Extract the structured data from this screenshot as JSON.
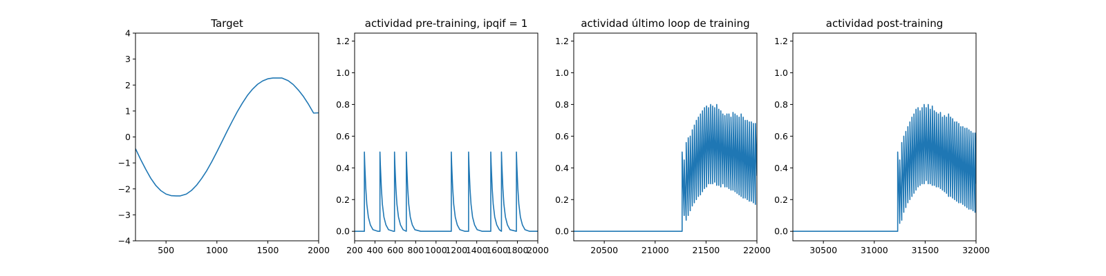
{
  "chart_data": [
    {
      "type": "line",
      "title": "Target",
      "xlim": [
        200,
        2000
      ],
      "ylim": [
        -4,
        4
      ],
      "xticks": [
        500,
        1000,
        1500,
        2000
      ],
      "yticks": [
        -4,
        -3,
        -2,
        -1,
        0,
        1,
        2,
        3,
        4
      ],
      "xtick_labels": [
        "500",
        "1000",
        "1500",
        "2000"
      ],
      "ytick_labels": [
        "−4",
        "−3",
        "−2",
        "−1",
        "0",
        "1",
        "2",
        "3",
        "4"
      ],
      "series": [
        {
          "color": "#1f77b4",
          "x": [
            200,
            250,
            300,
            350,
            400,
            450,
            500,
            550,
            600,
            640,
            700,
            750,
            800,
            850,
            900,
            950,
            1000,
            1050,
            1100,
            1150,
            1200,
            1250,
            1300,
            1350,
            1400,
            1450,
            1500,
            1550,
            1600,
            1640,
            1700,
            1750,
            1800,
            1850,
            1900,
            1950,
            2000
          ],
          "y": [
            -0.45,
            -0.86,
            -1.24,
            -1.59,
            -1.87,
            -2.07,
            -2.2,
            -2.26,
            -2.27,
            -2.27,
            -2.2,
            -2.06,
            -1.86,
            -1.6,
            -1.3,
            -0.95,
            -0.57,
            -0.18,
            0.22,
            0.6,
            0.97,
            1.3,
            1.6,
            1.84,
            2.03,
            2.16,
            2.24,
            2.27,
            2.27,
            2.27,
            2.17,
            2.02,
            1.81,
            1.56,
            1.26,
            0.92,
            0.93
          ]
        }
      ]
    },
    {
      "type": "line",
      "title": "actividad pre-training, ipqif = 1",
      "xlim": [
        200,
        2000
      ],
      "ylim": [
        -0.06,
        1.25
      ],
      "xticks": [
        200,
        400,
        600,
        800,
        1000,
        1200,
        1400,
        1600,
        1800,
        2000
      ],
      "yticks": [
        0.0,
        0.2,
        0.4,
        0.6,
        0.8,
        1.0,
        1.2
      ],
      "xtick_labels": [
        "200",
        "400",
        "600",
        "800",
        "1000",
        "1200",
        "1400",
        "1600",
        "1800",
        "2000"
      ],
      "ytick_labels": [
        "0.0",
        "0.2",
        "0.4",
        "0.6",
        "0.8",
        "1.0",
        "1.2"
      ],
      "series": [
        {
          "color": "#1f77b4",
          "x": [
            200,
            296,
            296,
            300,
            310,
            320,
            335,
            355,
            380,
            430,
            449,
            449,
            453,
            463,
            473,
            488,
            508,
            533,
            583,
            592,
            592,
            596,
            606,
            616,
            631,
            651,
            676,
            708,
            708,
            712,
            722,
            732,
            747,
            767,
            792,
            850,
            1000,
            1150,
            1150,
            1154,
            1164,
            1174,
            1189,
            1209,
            1234,
            1284,
            1320,
            1320,
            1324,
            1334,
            1344,
            1359,
            1379,
            1404,
            1454,
            1538,
            1538,
            1542,
            1552,
            1562,
            1577,
            1597,
            1622,
            1643,
            1643,
            1647,
            1657,
            1667,
            1682,
            1702,
            1727,
            1790,
            1790,
            1794,
            1804,
            1814,
            1829,
            1849,
            1874,
            1920,
            2000
          ],
          "y": [
            0,
            0,
            0.5,
            0.42,
            0.27,
            0.17,
            0.09,
            0.04,
            0.01,
            0,
            0,
            0.5,
            0.42,
            0.27,
            0.17,
            0.09,
            0.04,
            0.01,
            0,
            0,
            0.5,
            0.42,
            0.27,
            0.17,
            0.09,
            0.04,
            0.01,
            0,
            0.5,
            0.42,
            0.27,
            0.17,
            0.09,
            0.04,
            0.01,
            0,
            0,
            0,
            0.5,
            0.42,
            0.27,
            0.17,
            0.09,
            0.04,
            0.01,
            0,
            0,
            0.5,
            0.42,
            0.27,
            0.17,
            0.09,
            0.04,
            0.01,
            0,
            0,
            0.5,
            0.42,
            0.27,
            0.17,
            0.09,
            0.04,
            0.01,
            0,
            0.5,
            0.42,
            0.27,
            0.17,
            0.09,
            0.04,
            0.01,
            0,
            0.5,
            0.42,
            0.27,
            0.17,
            0.09,
            0.04,
            0.01,
            0,
            0
          ]
        }
      ]
    },
    {
      "type": "line",
      "title": "actividad último loop de training",
      "xlim": [
        20200,
        22000
      ],
      "ylim": [
        -0.06,
        1.25
      ],
      "xticks": [
        20500,
        21000,
        21500,
        22000
      ],
      "yticks": [
        0.0,
        0.2,
        0.4,
        0.6,
        0.8,
        1.0,
        1.2
      ],
      "xtick_labels": [
        "20500",
        "21000",
        "21500",
        "22000"
      ],
      "ytick_labels": [
        "0.0",
        "0.2",
        "0.4",
        "0.6",
        "0.8",
        "1.0",
        "1.2"
      ],
      "series": [
        {
          "color": "#1f77b4",
          "x": [
            20200,
            21265,
            21265,
            21285,
            21285,
            21305,
            21305,
            21325,
            21325,
            21345,
            21345,
            21365,
            21365,
            21385,
            21385,
            21405,
            21405,
            21425,
            21425,
            21445,
            21445,
            21465,
            21465,
            21485,
            21485,
            21505,
            21505,
            21525,
            21525,
            21545,
            21545,
            21565,
            21565,
            21585,
            21585,
            21605,
            21605,
            21625,
            21625,
            21645,
            21645,
            21665,
            21665,
            21685,
            21685,
            21705,
            21705,
            21725,
            21725,
            21745,
            21745,
            21765,
            21765,
            21785,
            21785,
            21805,
            21805,
            21825,
            21825,
            21845,
            21845,
            21865,
            21865,
            21885,
            21885,
            21905,
            21905,
            21925,
            21925,
            21945,
            21945,
            21965,
            21965,
            21985,
            21985,
            22000
          ],
          "y": [
            0,
            0,
            0.5,
            0.1,
            0.45,
            0.07,
            0.56,
            0.1,
            0.59,
            0.13,
            0.6,
            0.16,
            0.64,
            0.18,
            0.67,
            0.2,
            0.7,
            0.22,
            0.72,
            0.23,
            0.74,
            0.25,
            0.76,
            0.27,
            0.78,
            0.28,
            0.79,
            0.3,
            0.78,
            0.3,
            0.8,
            0.3,
            0.79,
            0.31,
            0.78,
            0.29,
            0.8,
            0.29,
            0.77,
            0.28,
            0.76,
            0.3,
            0.74,
            0.28,
            0.73,
            0.28,
            0.74,
            0.27,
            0.74,
            0.26,
            0.72,
            0.26,
            0.75,
            0.25,
            0.74,
            0.24,
            0.73,
            0.23,
            0.72,
            0.22,
            0.74,
            0.21,
            0.72,
            0.21,
            0.7,
            0.2,
            0.7,
            0.19,
            0.69,
            0.19,
            0.69,
            0.18,
            0.68,
            0.17,
            0.68,
            0.35
          ]
        }
      ]
    },
    {
      "type": "line",
      "title": "actividad post-training",
      "xlim": [
        30200,
        32000
      ],
      "ylim": [
        -0.06,
        1.25
      ],
      "xticks": [
        30500,
        31000,
        31500,
        32000
      ],
      "yticks": [
        0.0,
        0.2,
        0.4,
        0.6,
        0.8,
        1.0,
        1.2
      ],
      "xtick_labels": [
        "30500",
        "31000",
        "31500",
        "32000"
      ],
      "ytick_labels": [
        "0.0",
        "0.2",
        "0.4",
        "0.6",
        "0.8",
        "1.0",
        "1.2"
      ],
      "series": [
        {
          "color": "#1f77b4",
          "x": [
            30200,
            31230,
            31230,
            31250,
            31250,
            31270,
            31270,
            31290,
            31290,
            31310,
            31310,
            31330,
            31330,
            31350,
            31350,
            31370,
            31370,
            31390,
            31390,
            31410,
            31410,
            31430,
            31430,
            31450,
            31450,
            31470,
            31470,
            31490,
            31490,
            31510,
            31510,
            31530,
            31530,
            31550,
            31550,
            31570,
            31570,
            31590,
            31590,
            31610,
            31610,
            31630,
            31630,
            31650,
            31650,
            31670,
            31670,
            31690,
            31690,
            31710,
            31710,
            31730,
            31730,
            31750,
            31750,
            31770,
            31770,
            31790,
            31790,
            31810,
            31810,
            31830,
            31830,
            31850,
            31850,
            31870,
            31870,
            31890,
            31890,
            31910,
            31910,
            31930,
            31930,
            31950,
            31950,
            31970,
            31970,
            31990,
            31990,
            32000
          ],
          "y": [
            0,
            0,
            0.5,
            0.05,
            0.45,
            0.07,
            0.56,
            0.12,
            0.6,
            0.15,
            0.63,
            0.18,
            0.66,
            0.2,
            0.69,
            0.22,
            0.72,
            0.24,
            0.74,
            0.26,
            0.77,
            0.28,
            0.78,
            0.29,
            0.76,
            0.3,
            0.78,
            0.3,
            0.8,
            0.32,
            0.78,
            0.3,
            0.8,
            0.3,
            0.77,
            0.29,
            0.79,
            0.29,
            0.76,
            0.28,
            0.75,
            0.28,
            0.74,
            0.27,
            0.75,
            0.26,
            0.72,
            0.25,
            0.73,
            0.24,
            0.72,
            0.22,
            0.74,
            0.22,
            0.72,
            0.21,
            0.71,
            0.2,
            0.69,
            0.19,
            0.69,
            0.18,
            0.68,
            0.18,
            0.66,
            0.17,
            0.66,
            0.16,
            0.65,
            0.15,
            0.65,
            0.14,
            0.64,
            0.14,
            0.63,
            0.13,
            0.62,
            0.12,
            0.62,
            0.3
          ]
        }
      ]
    }
  ]
}
